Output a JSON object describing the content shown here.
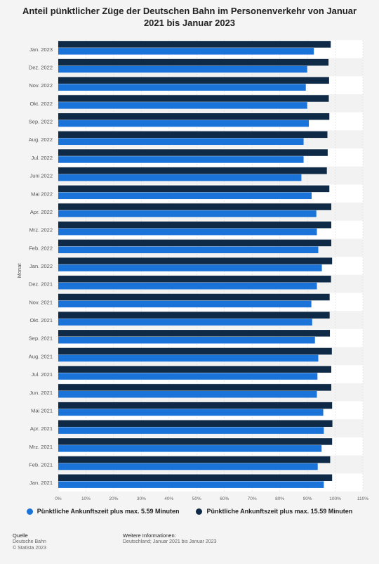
{
  "chart_data": {
    "type": "bar",
    "orientation": "horizontal",
    "title": "Anteil pünktlicher Züge der Deutschen Bahn im Personenverkehr von Januar 2021 bis Januar 2023",
    "ylabel": "Monat",
    "xlabel": "",
    "xlim": [
      0,
      110
    ],
    "x_ticks": [
      "0%",
      "10%",
      "20%",
      "30%",
      "40%",
      "50%",
      "60%",
      "70%",
      "80%",
      "90%",
      "100%",
      "110%"
    ],
    "grid": true,
    "legend_position": "bottom",
    "categories": [
      "Jan. 2023",
      "Dez. 2022",
      "Nov. 2022",
      "Okt. 2022",
      "Sep. 2022",
      "Aug. 2022",
      "Jul. 2022",
      "Juni 2022",
      "Mai 2022",
      "Apr. 2022",
      "Mrz. 2022",
      "Feb. 2022",
      "Jan. 2022",
      "Dez. 2021",
      "Nov. 2021",
      "Okt. 2021",
      "Sep. 2021",
      "Aug. 2021",
      "Jul. 2021",
      "Jun. 2021",
      "Mai 2021",
      "Apr. 2021",
      "Mrz. 2021",
      "Feb. 2021",
      "Jan. 2021"
    ],
    "series": [
      {
        "name": "Pünktliche Ankunftszeit plus max. 5.59 Minuten",
        "color": "#1a73d9",
        "values": [
          92.3,
          89.9,
          89.4,
          89.9,
          90.5,
          88.6,
          88.6,
          87.8,
          91.5,
          93.2,
          93.4,
          93.9,
          95.2,
          93.4,
          91.4,
          91.7,
          92.7,
          93.9,
          93.6,
          93.4,
          95.7,
          95.9,
          95.1,
          93.7,
          95.9
        ]
      },
      {
        "name": "Pünktliche Ankunftszeit plus max. 15.59 Minuten",
        "color": "#0e2a47",
        "values": [
          98.4,
          97.6,
          97.8,
          97.7,
          97.9,
          97.2,
          97.3,
          97.0,
          97.9,
          98.6,
          98.6,
          98.6,
          98.9,
          98.5,
          98.0,
          98.0,
          98.1,
          98.8,
          98.6,
          98.6,
          98.9,
          99.0,
          98.9,
          98.2,
          98.9
        ]
      }
    ]
  },
  "footer": {
    "source_heading": "Quelle",
    "source_name": "Deutsche Bahn",
    "copyright": "© Statista 2023",
    "info_heading": "Weitere Informationen:",
    "info_text": "Deutschland; Januar 2021 bis Januar 2023"
  }
}
